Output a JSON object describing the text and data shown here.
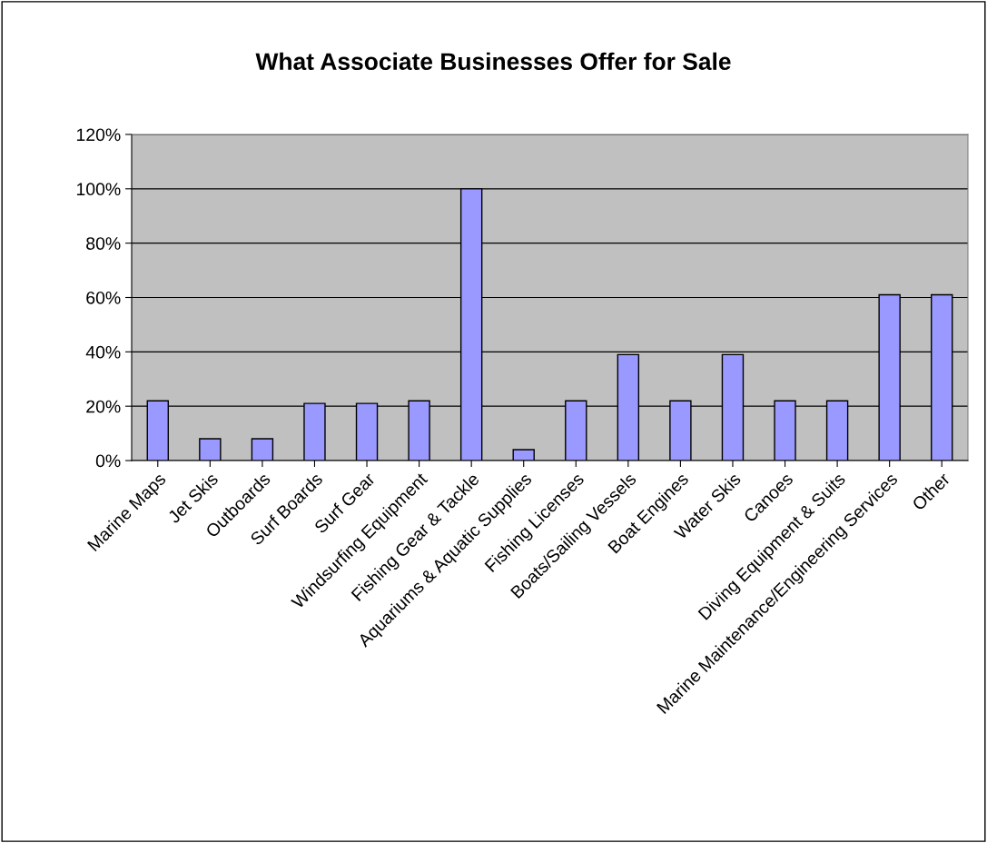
{
  "chart_data": {
    "type": "bar",
    "title": "What Associate Businesses Offer for Sale",
    "categories": [
      "Marine Maps",
      "Jet Skis",
      "Outboards",
      "Surf Boards",
      "Surf Gear",
      "Windsurfing Equipment",
      "Fishing Gear & Tackle",
      "Aquariums & Aquatic Supplies",
      "Fishing Licenses",
      "Boats/Sailing Vessels",
      "Boat Engines",
      "Water Skis",
      "Canoes",
      "Diving Equipment & Suits",
      "Marine Maintenance/Engineering Services",
      "Other"
    ],
    "values": [
      22,
      8,
      8,
      21,
      21,
      22,
      100,
      4,
      22,
      39,
      22,
      39,
      22,
      22,
      61,
      61
    ],
    "color": "#9999ff",
    "ylim": [
      0,
      120
    ],
    "yticks": [
      {
        "value": 0,
        "label": "0%"
      },
      {
        "value": 20,
        "label": "20%"
      },
      {
        "value": 40,
        "label": "40%"
      },
      {
        "value": 60,
        "label": "60%"
      },
      {
        "value": 80,
        "label": "80%"
      },
      {
        "value": 100,
        "label": "100%"
      },
      {
        "value": 120,
        "label": "120%"
      }
    ],
    "grid": "y",
    "legend": false
  }
}
